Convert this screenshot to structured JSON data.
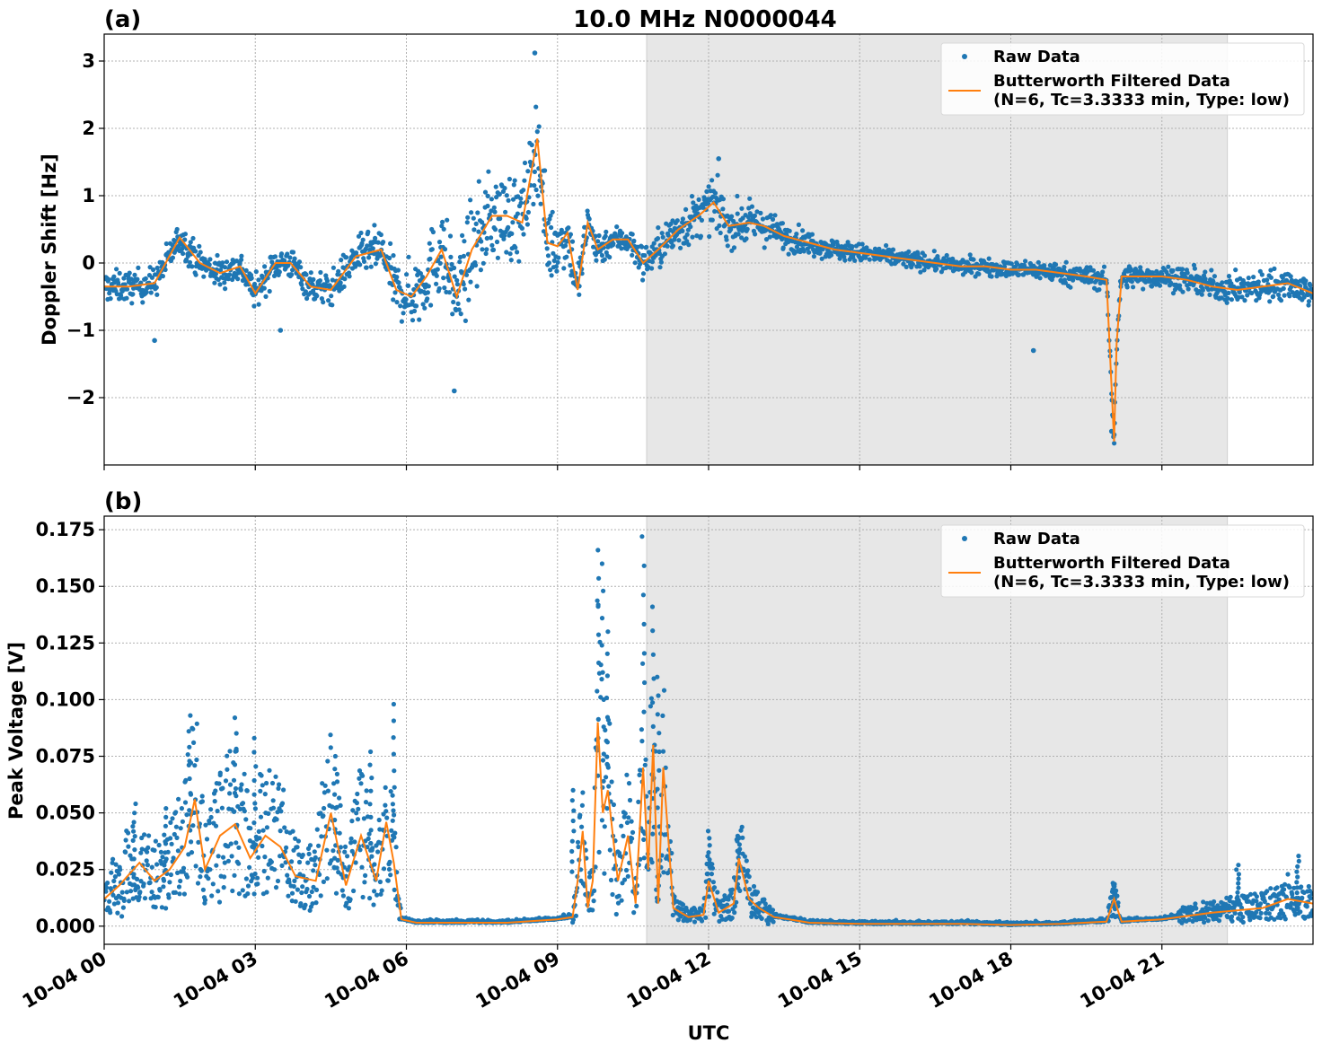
{
  "figure": {
    "suptitle": "10.0 MHz N0000044",
    "xlabel": "UTC",
    "x_tick_labels": [
      "10-04 00",
      "10-04 03",
      "10-04 06",
      "10-04 09",
      "10-04 12",
      "10-04 15",
      "10-04 18",
      "10-04 21"
    ],
    "x_ticks_hours": [
      0,
      3,
      6,
      9,
      12,
      15,
      18,
      21
    ],
    "x_range_hours": [
      0,
      24
    ],
    "shaded_span_hours": [
      10.77,
      22.3
    ],
    "shade_color": "#e7e7e7",
    "raw_color": "#1f77b4",
    "filtered_color": "#ff7f0e",
    "legend": {
      "raw": "Raw Data",
      "filtered_line1": "Butterworth Filtered Data",
      "filtered_line2": "(N=6, Tc=3.3333 min, Type: low)",
      "placement": "upper right"
    }
  },
  "chart_data": [
    {
      "type": "scatter",
      "panel_label": "(a)",
      "ylabel": "Doppler Shift [Hz]",
      "ylim": [
        -3.0,
        3.4
      ],
      "y_ticks": [
        -2,
        -1,
        0,
        1,
        2,
        3
      ],
      "y_tick_labels": [
        "−2",
        "−1",
        "0",
        "1",
        "2",
        "3"
      ],
      "grid": true,
      "series": [
        {
          "name": "Butterworth Filtered Data",
          "x": [
            0,
            0.5,
            1.0,
            1.5,
            1.9,
            2.3,
            2.7,
            3.0,
            3.4,
            3.7,
            4.1,
            4.5,
            5.0,
            5.5,
            5.8,
            6.1,
            6.4,
            6.7,
            7.0,
            7.3,
            7.7,
            8.0,
            8.3,
            8.6,
            8.8,
            9.0,
            9.2,
            9.4,
            9.6,
            9.8,
            10.1,
            10.4,
            10.7,
            11.0,
            11.4,
            11.8,
            12.1,
            12.4,
            12.8,
            13.1,
            13.5,
            14.0,
            14.5,
            15.0,
            15.5,
            16.0,
            16.5,
            17.0,
            17.5,
            18.0,
            18.5,
            19.0,
            19.5,
            19.9,
            20.05,
            20.1,
            20.2,
            20.5,
            21.0,
            21.5,
            22.0,
            22.5,
            23.0,
            23.5,
            24.0
          ],
          "values": [
            -0.35,
            -0.35,
            -0.3,
            0.38,
            0.0,
            -0.15,
            -0.05,
            -0.45,
            0.0,
            0.0,
            -0.35,
            -0.4,
            0.1,
            0.2,
            -0.4,
            -0.5,
            -0.2,
            0.2,
            -0.5,
            0.2,
            0.7,
            0.7,
            0.6,
            1.85,
            0.3,
            0.25,
            0.45,
            -0.4,
            0.6,
            0.2,
            0.35,
            0.35,
            0.0,
            0.2,
            0.5,
            0.7,
            0.9,
            0.55,
            0.6,
            0.55,
            0.4,
            0.3,
            0.2,
            0.15,
            0.1,
            0.05,
            0.0,
            -0.05,
            -0.05,
            -0.1,
            -0.1,
            -0.15,
            -0.2,
            -0.25,
            -2.65,
            -1.2,
            -0.2,
            -0.2,
            -0.2,
            -0.25,
            -0.35,
            -0.4,
            -0.35,
            -0.3,
            -0.45
          ]
        },
        {
          "name": "Raw Data",
          "spread_x": [
            0,
            1.5,
            2.5,
            4.0,
            5.0,
            5.8,
            6.4,
            7.0,
            7.5,
            8.0,
            8.6,
            9.0,
            9.5,
            10.2,
            10.8,
            11.5,
            12.2,
            13.0,
            14.0,
            15.0,
            16.0,
            17.0,
            18.0,
            19.0,
            20.0,
            21.0,
            22.0,
            23.0,
            24.0
          ],
          "spread_hz": [
            0.3,
            0.3,
            0.3,
            0.3,
            0.35,
            0.5,
            0.75,
            0.85,
            0.9,
            0.85,
            0.85,
            0.65,
            0.45,
            0.25,
            0.35,
            0.45,
            0.45,
            0.35,
            0.22,
            0.18,
            0.17,
            0.16,
            0.16,
            0.2,
            0.22,
            0.22,
            0.25,
            0.3,
            0.28
          ],
          "outliers": [
            [
              8.55,
              3.12
            ],
            [
              6.95,
              -1.9
            ],
            [
              12.2,
              1.55
            ],
            [
              18.45,
              -1.3
            ],
            [
              20.05,
              -2.55
            ],
            [
              20.0,
              -2.5
            ],
            [
              1.0,
              -1.15
            ],
            [
              3.5,
              -1.0
            ]
          ]
        }
      ]
    },
    {
      "type": "scatter",
      "panel_label": "(b)",
      "ylabel": "Peak Voltage [V]",
      "ylim": [
        -0.008,
        0.181
      ],
      "y_ticks": [
        0.0,
        0.025,
        0.05,
        0.075,
        0.1,
        0.125,
        0.15,
        0.175
      ],
      "y_tick_labels": [
        "0.000",
        "0.025",
        "0.050",
        "0.075",
        "0.100",
        "0.125",
        "0.150",
        "0.175"
      ],
      "grid": true,
      "series": [
        {
          "name": "Butterworth Filtered Data",
          "x": [
            0,
            0.3,
            0.7,
            1.0,
            1.3,
            1.6,
            1.8,
            2.0,
            2.3,
            2.6,
            2.9,
            3.2,
            3.5,
            3.8,
            4.2,
            4.5,
            4.8,
            5.1,
            5.4,
            5.6,
            5.75,
            5.9,
            6.2,
            7.0,
            8.0,
            9.0,
            9.3,
            9.4,
            9.5,
            9.6,
            9.7,
            9.8,
            9.9,
            10.0,
            10.2,
            10.4,
            10.55,
            10.7,
            10.8,
            10.9,
            11.0,
            11.1,
            11.3,
            11.6,
            11.9,
            12.0,
            12.2,
            12.5,
            12.6,
            12.8,
            13.0,
            13.3,
            13.6,
            14.0,
            15.0,
            16.0,
            17.0,
            18.0,
            19.0,
            19.9,
            20.05,
            20.2,
            21.0,
            22.0,
            23.0,
            23.5,
            24.0
          ],
          "values": [
            0.012,
            0.018,
            0.028,
            0.02,
            0.025,
            0.035,
            0.056,
            0.025,
            0.04,
            0.045,
            0.03,
            0.04,
            0.035,
            0.022,
            0.02,
            0.05,
            0.018,
            0.04,
            0.02,
            0.046,
            0.028,
            0.003,
            0.0015,
            0.0015,
            0.0015,
            0.003,
            0.004,
            0.02,
            0.042,
            0.008,
            0.02,
            0.09,
            0.05,
            0.06,
            0.02,
            0.04,
            0.01,
            0.07,
            0.025,
            0.08,
            0.01,
            0.07,
            0.008,
            0.004,
            0.005,
            0.02,
            0.006,
            0.01,
            0.03,
            0.012,
            0.008,
            0.004,
            0.003,
            0.0015,
            0.001,
            0.001,
            0.001,
            0.0005,
            0.001,
            0.002,
            0.012,
            0.002,
            0.003,
            0.006,
            0.008,
            0.012,
            0.01
          ]
        },
        {
          "name": "Raw Data",
          "peaks": [
            [
              1.7,
              0.093
            ],
            [
              2.6,
              0.092
            ],
            [
              3.0,
              0.083
            ],
            [
              4.6,
              0.075
            ],
            [
              5.3,
              0.077
            ],
            [
              5.75,
              0.098
            ],
            [
              9.3,
              0.06
            ],
            [
              9.8,
              0.166
            ],
            [
              9.9,
              0.16
            ],
            [
              10.0,
              0.13
            ],
            [
              10.7,
              0.172
            ],
            [
              10.9,
              0.141
            ],
            [
              11.0,
              0.11
            ],
            [
              12.0,
              0.042
            ],
            [
              12.6,
              0.039
            ],
            [
              20.05,
              0.019
            ],
            [
              22.5,
              0.027
            ],
            [
              23.7,
              0.031
            ],
            [
              0.6,
              0.054
            ],
            [
              1.2,
              0.052
            ]
          ]
        }
      ]
    }
  ]
}
